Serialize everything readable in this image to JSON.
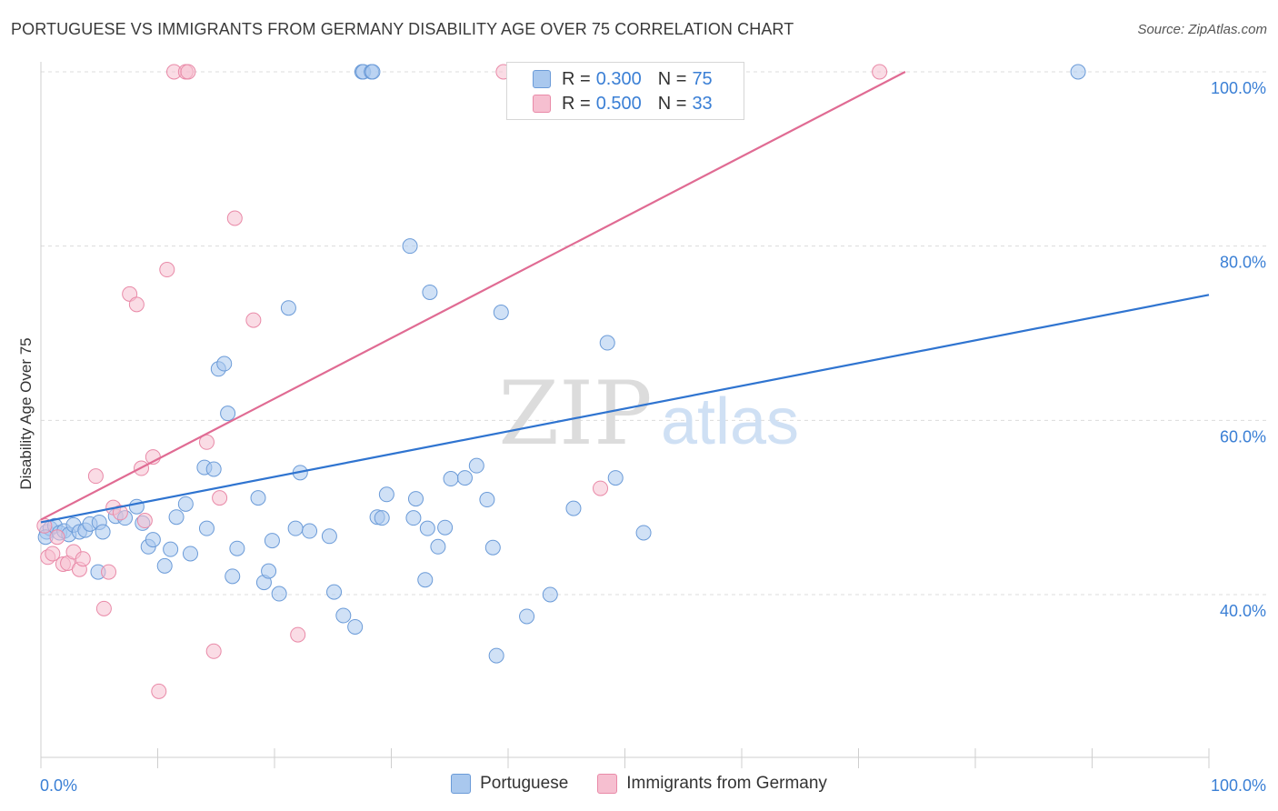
{
  "title": "PORTUGUESE VS IMMIGRANTS FROM GERMANY DISABILITY AGE OVER 75 CORRELATION CHART",
  "source": "Source: ZipAtlas.com",
  "watermark": {
    "zip": "ZIP",
    "atlas": "atlas"
  },
  "legend_top": {
    "rows": [
      {
        "r_label": "R =",
        "r_value": "0.300",
        "n_label": "N =",
        "n_value": "75"
      },
      {
        "r_label": "R =",
        "r_value": "0.500",
        "n_label": "N =",
        "n_value": "33"
      }
    ]
  },
  "legend_bottom": [
    "Portuguese",
    "Immigrants from Germany"
  ],
  "colors": {
    "blue_fill": "#a9c8ee",
    "blue_stroke": "#6b9bd8",
    "blue_line": "#2f74d0",
    "pink_fill": "#f6bfd0",
    "pink_stroke": "#e98aa8",
    "pink_line": "#e06b93",
    "axis_label": "#3a7fd5",
    "grid": "#dcdcdc"
  },
  "chart_data": {
    "type": "scatter",
    "title": "PORTUGUESE VS IMMIGRANTS FROM GERMANY DISABILITY AGE OVER 75 CORRELATION CHART",
    "xlabel": "",
    "ylabel": "Disability Age Over 75",
    "xlim": [
      0,
      100
    ],
    "ylim": [
      22,
      102
    ],
    "x_tick_labels": [
      "0.0%",
      "100.0%"
    ],
    "y_ticks": [
      40,
      60,
      80,
      100
    ],
    "y_tick_labels": [
      "40.0%",
      "60.0%",
      "80.0%",
      "100.0%"
    ],
    "grid": true,
    "legend_placement": "top-center",
    "series": [
      {
        "name": "Portuguese",
        "color": "blue",
        "trend": {
          "x": [
            0,
            100
          ],
          "y": [
            48.3,
            74.4
          ]
        },
        "points": [
          [
            0.5,
            47.2
          ],
          [
            0.8,
            47.6
          ],
          [
            1.2,
            47.9
          ],
          [
            1.6,
            47.1
          ],
          [
            2.0,
            47.3
          ],
          [
            2.4,
            46.9
          ],
          [
            2.8,
            48.0
          ],
          [
            3.3,
            47.2
          ],
          [
            3.8,
            47.4
          ],
          [
            4.2,
            48.1
          ],
          [
            5.0,
            48.3
          ],
          [
            5.3,
            47.2
          ],
          [
            6.4,
            49.0
          ],
          [
            7.2,
            48.8
          ],
          [
            8.2,
            50.1
          ],
          [
            8.7,
            48.2
          ],
          [
            9.2,
            45.5
          ],
          [
            9.6,
            46.3
          ],
          [
            10.6,
            43.3
          ],
          [
            11.1,
            45.2
          ],
          [
            11.6,
            48.9
          ],
          [
            12.4,
            50.4
          ],
          [
            12.8,
            44.7
          ],
          [
            14.0,
            54.6
          ],
          [
            14.2,
            47.6
          ],
          [
            14.8,
            54.4
          ],
          [
            15.2,
            65.9
          ],
          [
            15.7,
            66.5
          ],
          [
            16.0,
            60.8
          ],
          [
            16.4,
            42.1
          ],
          [
            16.8,
            45.3
          ],
          [
            18.6,
            51.1
          ],
          [
            19.1,
            41.4
          ],
          [
            19.5,
            42.7
          ],
          [
            19.8,
            46.2
          ],
          [
            20.4,
            40.1
          ],
          [
            21.2,
            72.9
          ],
          [
            21.8,
            47.6
          ],
          [
            22.2,
            54.0
          ],
          [
            23.0,
            47.3
          ],
          [
            24.7,
            46.7
          ],
          [
            25.1,
            40.3
          ],
          [
            25.9,
            37.6
          ],
          [
            26.9,
            36.3
          ],
          [
            27.5,
            100.0
          ],
          [
            27.6,
            100.0
          ],
          [
            28.3,
            100.0
          ],
          [
            28.4,
            100.0
          ],
          [
            28.8,
            48.9
          ],
          [
            29.2,
            48.8
          ],
          [
            29.6,
            51.5
          ],
          [
            31.6,
            80.0
          ],
          [
            31.9,
            48.8
          ],
          [
            32.1,
            51.0
          ],
          [
            32.9,
            41.7
          ],
          [
            33.1,
            47.6
          ],
          [
            33.3,
            74.7
          ],
          [
            34.0,
            45.5
          ],
          [
            34.6,
            47.7
          ],
          [
            35.1,
            53.3
          ],
          [
            36.3,
            53.4
          ],
          [
            37.3,
            54.8
          ],
          [
            38.2,
            50.9
          ],
          [
            38.7,
            45.4
          ],
          [
            39.0,
            33.0
          ],
          [
            39.4,
            72.4
          ],
          [
            41.6,
            37.5
          ],
          [
            43.6,
            40.0
          ],
          [
            45.6,
            49.9
          ],
          [
            48.5,
            68.9
          ],
          [
            49.2,
            53.4
          ],
          [
            51.6,
            47.1
          ],
          [
            88.8,
            100.0
          ],
          [
            0.4,
            46.6
          ],
          [
            4.9,
            42.6
          ]
        ]
      },
      {
        "name": "Immigrants from Germany",
        "color": "pink",
        "trend": {
          "x": [
            0,
            74
          ],
          "y": [
            48.6,
            100
          ]
        },
        "points": [
          [
            0.3,
            47.9
          ],
          [
            0.6,
            44.3
          ],
          [
            1.0,
            44.7
          ],
          [
            1.4,
            46.6
          ],
          [
            1.9,
            43.5
          ],
          [
            2.3,
            43.6
          ],
          [
            2.8,
            44.9
          ],
          [
            3.3,
            42.9
          ],
          [
            3.6,
            44.1
          ],
          [
            4.7,
            53.6
          ],
          [
            5.4,
            38.4
          ],
          [
            5.8,
            42.6
          ],
          [
            6.2,
            50.0
          ],
          [
            6.8,
            49.4
          ],
          [
            7.6,
            74.5
          ],
          [
            8.2,
            73.3
          ],
          [
            8.6,
            54.5
          ],
          [
            8.9,
            48.5
          ],
          [
            9.6,
            55.8
          ],
          [
            10.1,
            28.9
          ],
          [
            10.8,
            77.3
          ],
          [
            11.4,
            100.0
          ],
          [
            12.4,
            100.0
          ],
          [
            12.6,
            100.0
          ],
          [
            14.2,
            57.5
          ],
          [
            14.8,
            33.5
          ],
          [
            15.3,
            51.1
          ],
          [
            16.6,
            83.2
          ],
          [
            18.2,
            71.5
          ],
          [
            22.0,
            35.4
          ],
          [
            39.6,
            100.0
          ],
          [
            47.9,
            52.2
          ],
          [
            71.8,
            100.0
          ]
        ]
      }
    ]
  }
}
